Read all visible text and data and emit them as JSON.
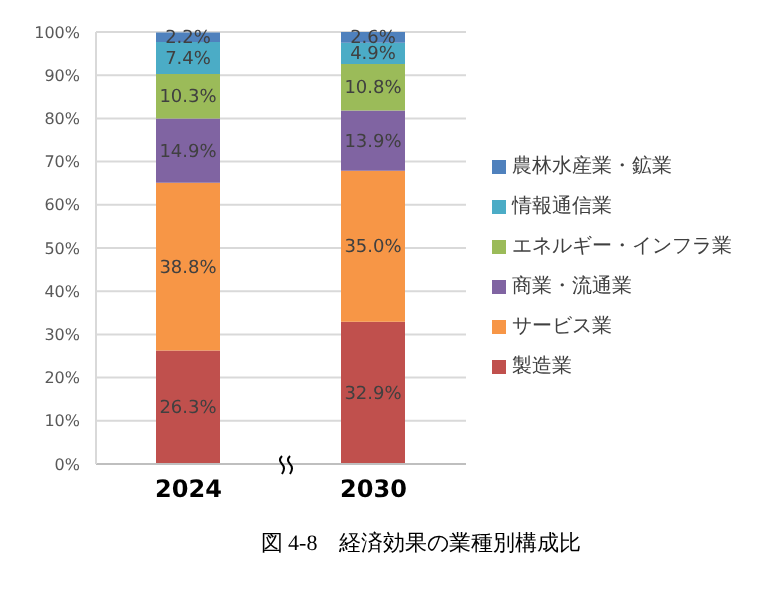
{
  "chart_data": {
    "type": "bar",
    "title": "図 4-8　経済効果の業種別構成比",
    "categories": [
      "2024",
      "2030"
    ],
    "stacked": true,
    "series": [
      {
        "name": "製造業",
        "color": "#c0504d",
        "values": [
          26.3,
          32.9
        ],
        "value_labels": [
          "26.3%",
          "32.9%"
        ]
      },
      {
        "name": "サービス業",
        "color": "#f79646",
        "values": [
          38.8,
          35.0
        ],
        "value_labels": [
          "38.8%",
          "35.0%"
        ]
      },
      {
        "name": "商業・流通業",
        "color": "#8064a2",
        "values": [
          14.9,
          13.9
        ],
        "value_labels": [
          "14.9%",
          "13.9%"
        ]
      },
      {
        "name": "エネルギー・インフラ業",
        "color": "#9bbb59",
        "values": [
          10.3,
          10.8
        ],
        "value_labels": [
          "10.3%",
          "10.8%"
        ]
      },
      {
        "name": "情報通信業",
        "color": "#4bacc6",
        "values": [
          7.4,
          4.9
        ],
        "value_labels": [
          "7.4%",
          "4.9%"
        ]
      },
      {
        "name": "農林水産業・鉱業",
        "color": "#4f81bd",
        "values": [
          2.2,
          2.6
        ],
        "value_labels": [
          "2.2%",
          "2.6%"
        ]
      }
    ],
    "ylim": [
      0,
      100
    ],
    "yticks": [
      {
        "value": 0,
        "label": "0%"
      },
      {
        "value": 10,
        "label": "10%"
      },
      {
        "value": 20,
        "label": "20%"
      },
      {
        "value": 30,
        "label": "30%"
      },
      {
        "value": 40,
        "label": "40%"
      },
      {
        "value": 50,
        "label": "50%"
      },
      {
        "value": 60,
        "label": "60%"
      },
      {
        "value": 70,
        "label": "70%"
      },
      {
        "value": 80,
        "label": "80%"
      },
      {
        "value": 90,
        "label": "90%"
      },
      {
        "value": 100,
        "label": "100%"
      }
    ],
    "grid": "y",
    "legend": "right"
  }
}
